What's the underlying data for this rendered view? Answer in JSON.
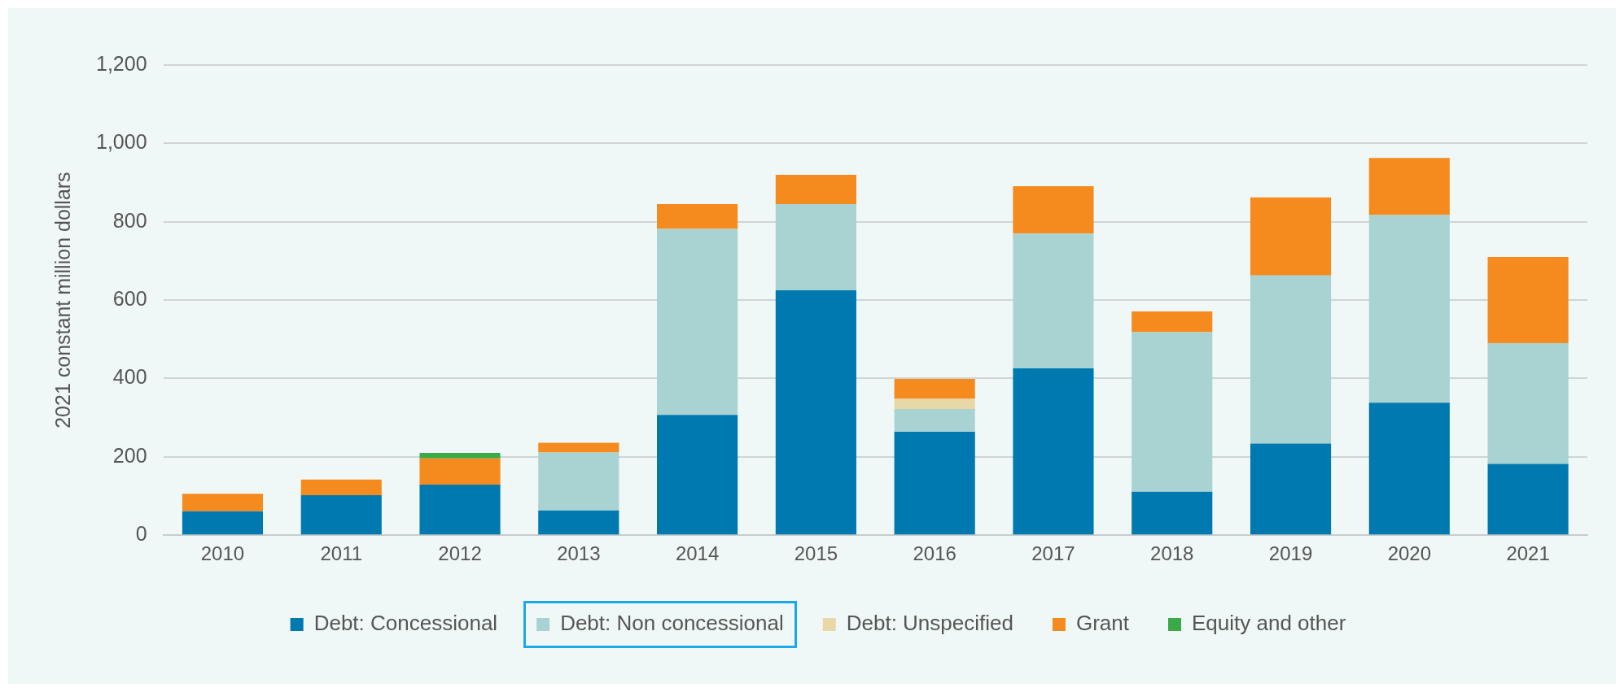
{
  "chart_data": {
    "type": "bar",
    "stacked": true,
    "ylabel": "2021 constant million dollars",
    "categories": [
      "2010",
      "2011",
      "2012",
      "2013",
      "2014",
      "2015",
      "2016",
      "2017",
      "2018",
      "2019",
      "2020",
      "2021"
    ],
    "series": [
      {
        "name": "Debt: Concessional",
        "color": "#0078b0",
        "values": [
          61,
          102,
          129,
          63,
          307,
          625,
          264,
          426,
          111,
          234,
          338,
          182
        ]
      },
      {
        "name": "Debt: Non concessional",
        "color": "#a8d3d2",
        "values": [
          0,
          0,
          0,
          148,
          475,
          220,
          58,
          344,
          407,
          429,
          479,
          308
        ]
      },
      {
        "name": "Debt: Unspecified",
        "color": "#e8d8a8",
        "values": [
          0,
          0,
          0,
          0,
          0,
          0,
          26,
          0,
          0,
          0,
          0,
          0
        ]
      },
      {
        "name": "Grant",
        "color": "#f58a1f",
        "values": [
          45,
          40,
          67,
          25,
          63,
          75,
          51,
          121,
          53,
          199,
          146,
          220
        ]
      },
      {
        "name": "Equity and other",
        "color": "#3aaa48",
        "values": [
          0,
          0,
          14,
          0,
          0,
          0,
          0,
          0,
          0,
          0,
          0,
          0
        ]
      }
    ],
    "ylim": [
      0,
      1200
    ],
    "yticks": [
      0,
      200,
      400,
      600,
      800,
      {
        "value": 1000,
        "label": "1,000"
      },
      {
        "value": 1200,
        "label": "1,200"
      }
    ],
    "grid": "y",
    "legend": "bottom"
  }
}
